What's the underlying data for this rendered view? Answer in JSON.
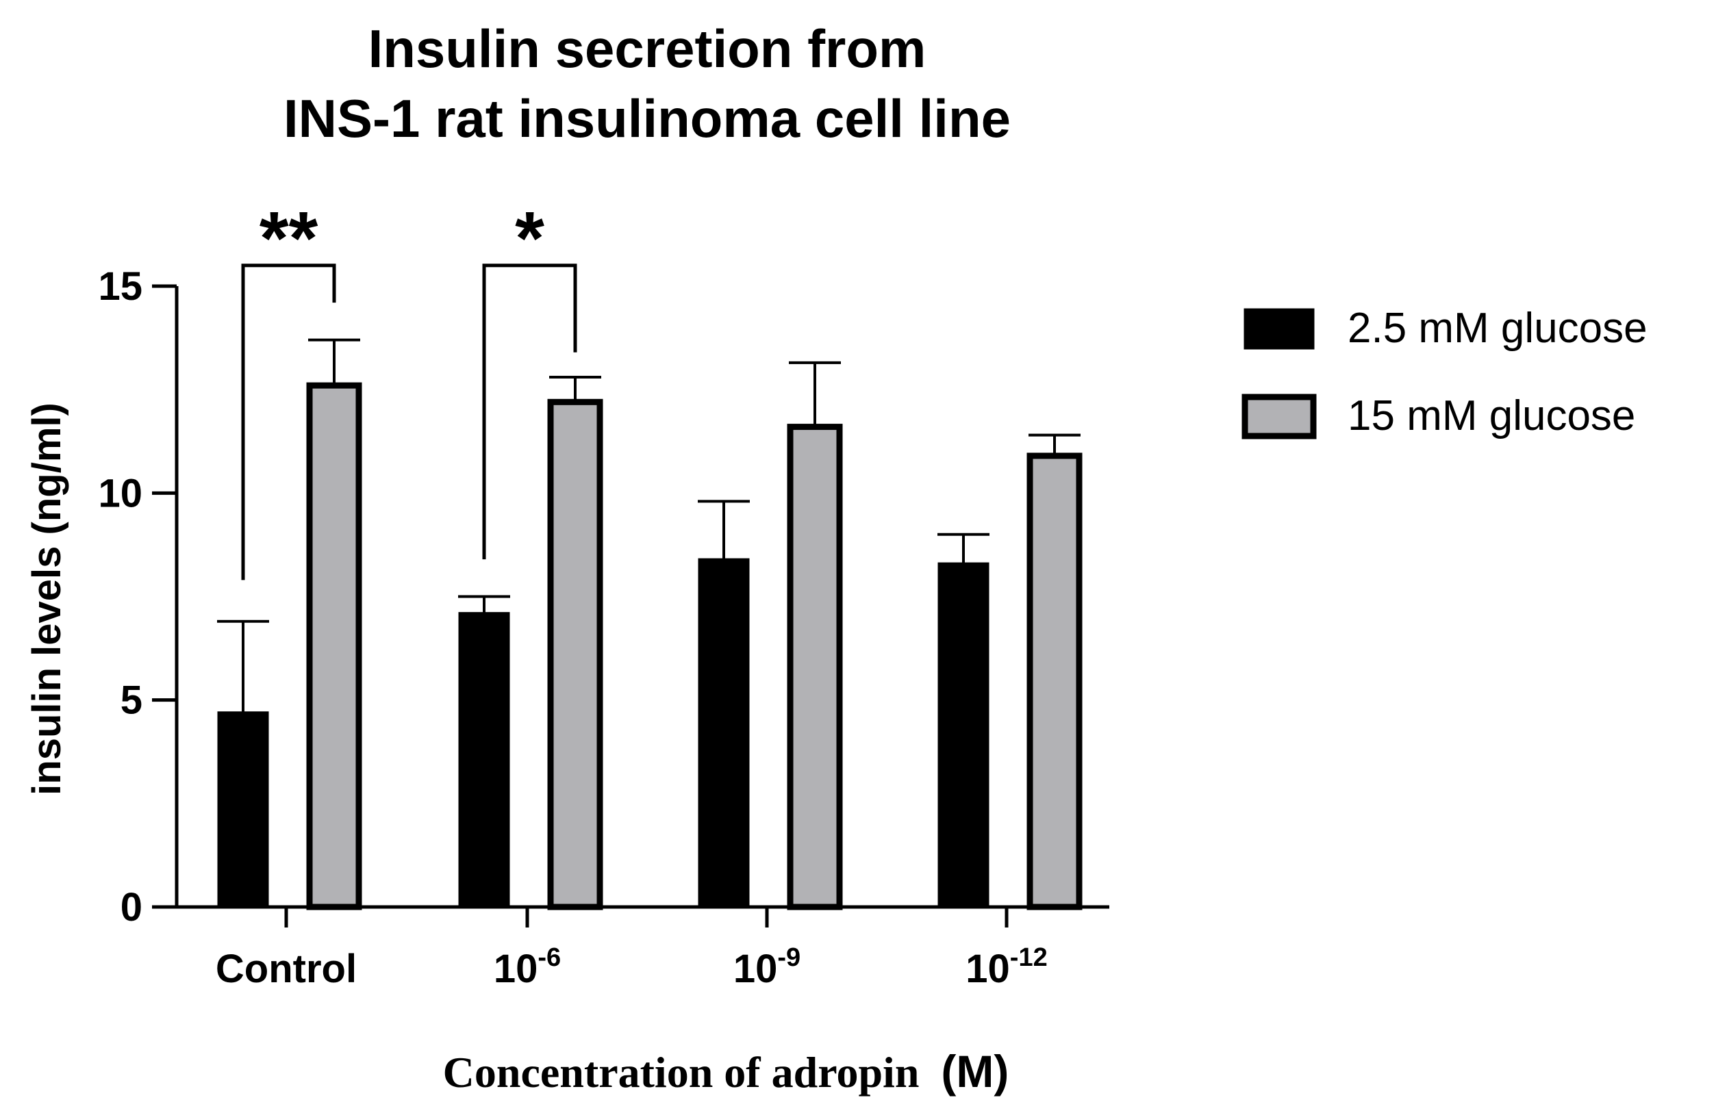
{
  "chart_data": {
    "type": "bar",
    "title_lines": [
      "Insulin secretion from",
      "INS-1 rat insulinoma cell line"
    ],
    "xlabel": "Concentration of adropin",
    "xlabel_unit": "(M)",
    "ylabel": "insulin levels (ng/ml)",
    "ylim": [
      0,
      15
    ],
    "yticks": [
      0,
      5,
      10,
      15
    ],
    "categories": [
      {
        "base": "Control",
        "exp": ""
      },
      {
        "base": "10",
        "exp": "-6"
      },
      {
        "base": "10",
        "exp": "-9"
      },
      {
        "base": "10",
        "exp": "-12"
      }
    ],
    "series": [
      {
        "name": "2.5 mM glucose",
        "fill": "#000000",
        "values": [
          4.7,
          7.1,
          8.4,
          8.3
        ],
        "errors": [
          2.2,
          0.4,
          1.4,
          0.7
        ]
      },
      {
        "name": "15 mM glucose",
        "fill": "#b2b2b5",
        "values": [
          12.6,
          12.2,
          11.6,
          10.9
        ],
        "errors": [
          1.1,
          0.6,
          1.55,
          0.5
        ]
      }
    ],
    "significance": [
      {
        "category": 0,
        "label": "**",
        "left_y": 7.9,
        "right_y": 14.6,
        "top_y": 15.5
      },
      {
        "category": 1,
        "label": "*",
        "left_y": 8.4,
        "right_y": 13.4,
        "top_y": 15.5
      }
    ],
    "legend_position": "right"
  }
}
